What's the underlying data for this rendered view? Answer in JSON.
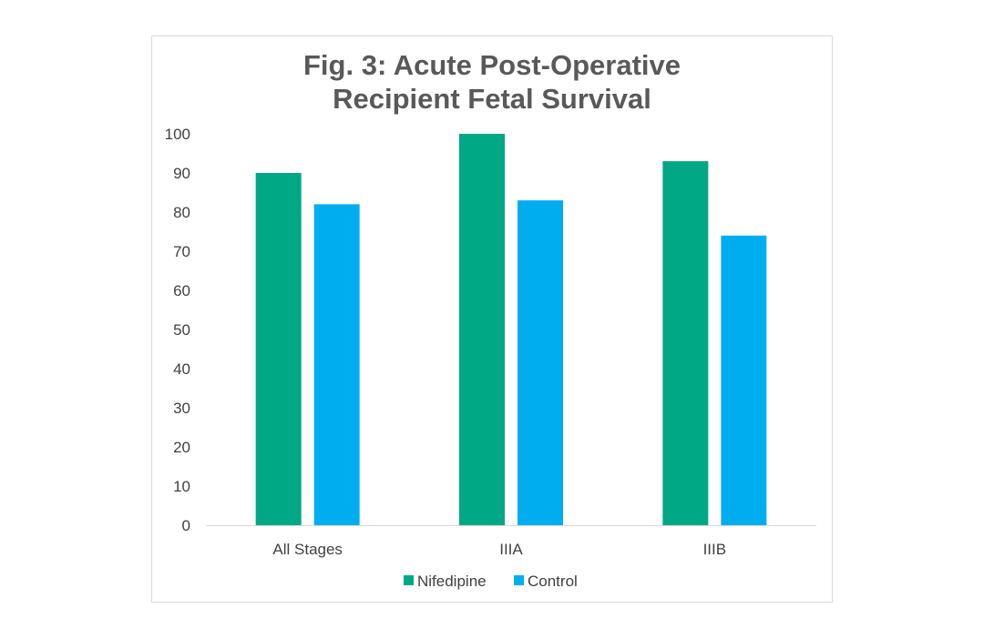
{
  "chart_data": {
    "type": "bar",
    "title_lines": [
      "Fig. 3: Acute Post-Operative",
      "Recipient Fetal Survival"
    ],
    "categories": [
      "All Stages",
      "IIIA",
      "IIIB"
    ],
    "series": [
      {
        "name": "Nifedipine",
        "color": "#00a886",
        "values": [
          90,
          100,
          93
        ]
      },
      {
        "name": "Control",
        "color": "#00aeef",
        "values": [
          82,
          83,
          74
        ]
      }
    ],
    "ylim": [
      0,
      100
    ],
    "yticks": [
      0,
      10,
      20,
      30,
      40,
      50,
      60,
      70,
      80,
      90,
      100
    ],
    "ytick_labels": [
      "0",
      "10",
      "20",
      "30",
      "40",
      "50",
      "60",
      "70",
      "80",
      "90",
      "100"
    ],
    "legend_position": "bottom",
    "grid": false,
    "xlabel": "",
    "ylabel": ""
  },
  "colors": {
    "axis": "#d9d9d9"
  }
}
